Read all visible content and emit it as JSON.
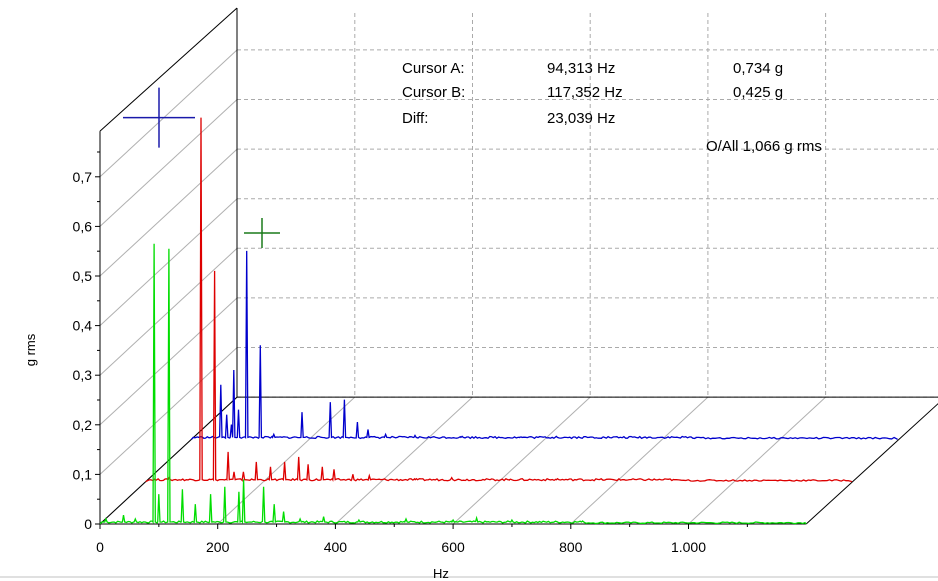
{
  "chart_data": {
    "type": "line",
    "subtype": "waterfall-3d",
    "xlabel": "Hz",
    "ylabel": "g rms",
    "xlim": [
      0,
      1200
    ],
    "ylim": [
      0,
      0.78
    ],
    "x_ticks": [
      0,
      200,
      400,
      600,
      800,
      1000
    ],
    "x_tick_labels": [
      "0",
      "200",
      "400",
      "600",
      "800",
      "1.000"
    ],
    "y_ticks": [
      0,
      0.1,
      0.2,
      0.3,
      0.4,
      0.5,
      0.6,
      0.7
    ],
    "y_tick_labels": [
      "0",
      "0,1",
      "0,2",
      "0,3",
      "0,4",
      "0,5",
      "0,6",
      "0,7"
    ],
    "grid": true,
    "series": [
      {
        "color": "#00dd00",
        "depth": 0,
        "peaks": [
          [
            10,
            0.01
          ],
          [
            40,
            0.018
          ],
          [
            60,
            0.01
          ],
          [
            92,
            0.565
          ],
          [
            100,
            0.06
          ],
          [
            117,
            0.555
          ],
          [
            140,
            0.07
          ],
          [
            162,
            0.04
          ],
          [
            188,
            0.06
          ],
          [
            212,
            0.075
          ],
          [
            236,
            0.065
          ],
          [
            244,
            0.09
          ],
          [
            278,
            0.075
          ],
          [
            296,
            0.04
          ],
          [
            312,
            0.025
          ],
          [
            340,
            0.01
          ],
          [
            380,
            0.015
          ],
          [
            440,
            0.008
          ],
          [
            520,
            0.01
          ],
          [
            600,
            0.008
          ],
          [
            640,
            0.012
          ],
          [
            700,
            0.008
          ],
          [
            820,
            0.006
          ]
        ]
      },
      {
        "color": "#dd0000",
        "depth": 1,
        "peaks": [
          [
            40,
            0.008
          ],
          [
            94,
            0.734
          ],
          [
            117,
            0.425
          ],
          [
            140,
            0.06
          ],
          [
            150,
            0.02
          ],
          [
            166,
            0.02
          ],
          [
            188,
            0.04
          ],
          [
            212,
            0.03
          ],
          [
            236,
            0.04
          ],
          [
            260,
            0.05
          ],
          [
            276,
            0.035
          ],
          [
            300,
            0.03
          ],
          [
            320,
            0.025
          ],
          [
            352,
            0.015
          ],
          [
            380,
            0.012
          ],
          [
            460,
            0.006
          ],
          [
            520,
            0.008
          ],
          [
            620,
            0.005
          ],
          [
            700,
            0.006
          ],
          [
            900,
            0.004
          ]
        ]
      },
      {
        "color": "#0000cc",
        "depth": 2,
        "peaks": [
          [
            10,
            0.005
          ],
          [
            50,
            0.11
          ],
          [
            60,
            0.05
          ],
          [
            68,
            0.03
          ],
          [
            72,
            0.14
          ],
          [
            80,
            0.06
          ],
          [
            94,
            0.38
          ],
          [
            117,
            0.19
          ],
          [
            140,
            0.01
          ],
          [
            188,
            0.055
          ],
          [
            236,
            0.075
          ],
          [
            260,
            0.08
          ],
          [
            282,
            0.035
          ],
          [
            300,
            0.02
          ],
          [
            330,
            0.01
          ],
          [
            380,
            0.008
          ],
          [
            460,
            0.006
          ],
          [
            560,
            0.005
          ],
          [
            620,
            0.006
          ],
          [
            700,
            0.005
          ],
          [
            860,
            0.004
          ]
        ]
      }
    ],
    "cursors": [
      {
        "name": "Cursor A",
        "x": 94.313,
        "y": 0.734,
        "color": "#1a1aaa"
      },
      {
        "name": "Cursor B",
        "x": 117.352,
        "y": 0.425,
        "color": "#1a7a1a"
      }
    ]
  },
  "readout": {
    "cursor_a_label": "Cursor A:",
    "cursor_a_freq": "94,313 Hz",
    "cursor_a_amp": "0,734 g",
    "cursor_b_label": "Cursor B:",
    "cursor_b_freq": "117,352 Hz",
    "cursor_b_amp": "0,425 g",
    "diff_label": "Diff:",
    "diff_freq": "23,039 Hz",
    "overall": "O/All 1,066 g rms"
  }
}
